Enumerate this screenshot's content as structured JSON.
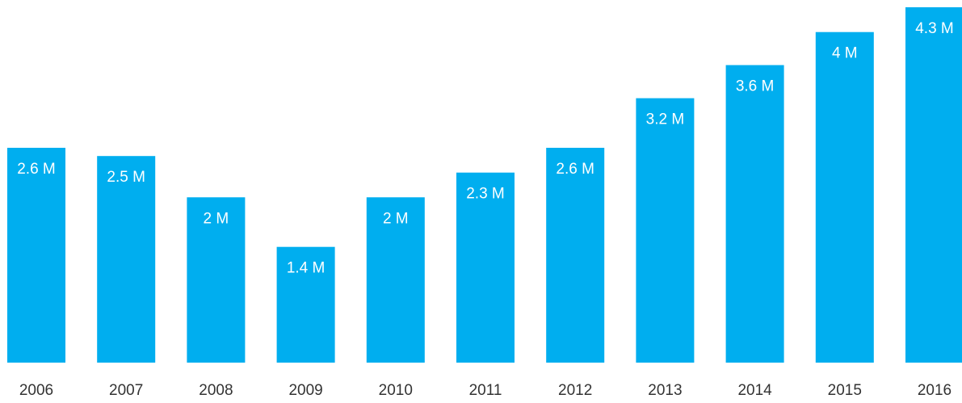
{
  "colors": {
    "bar": "#00AEEF",
    "bar_label": "#FFFFFF",
    "tick_label": "#333333",
    "background": "#FFFFFF"
  },
  "chart_data": {
    "type": "bar",
    "title": "",
    "xlabel": "",
    "ylabel": "",
    "categories": [
      "2006",
      "2007",
      "2008",
      "2009",
      "2010",
      "2011",
      "2012",
      "2013",
      "2014",
      "2015",
      "2016"
    ],
    "values": [
      2.6,
      2.5,
      2.0,
      1.4,
      2.0,
      2.3,
      2.6,
      3.2,
      3.6,
      4.0,
      4.3
    ],
    "data_labels": [
      "2.6 M",
      "2.5 M",
      "2 M",
      "1.4 M",
      "2 M",
      "2.3 M",
      "2.6 M",
      "3.2 M",
      "3.6 M",
      "4 M",
      "4.3 M"
    ],
    "ylim": [
      0,
      4.3
    ],
    "grid": false,
    "legend": "none",
    "axis_lines": false
  }
}
